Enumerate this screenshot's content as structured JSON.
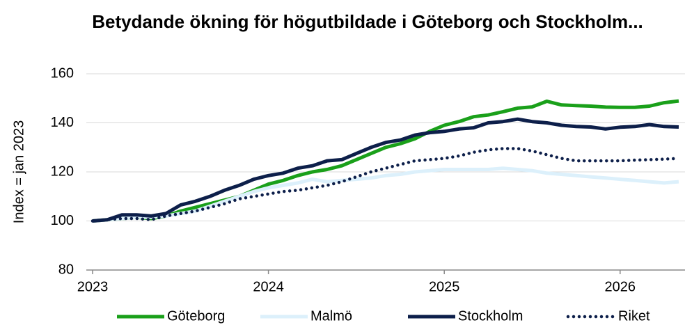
{
  "chart_data": {
    "type": "line",
    "title": "Betydande ökning för högutbildade i Göteborg och Stockholm...",
    "y_label": "Index = jan 2023",
    "categories": [
      "2023",
      null,
      null,
      null,
      null,
      null,
      null,
      null,
      null,
      null,
      null,
      null,
      "2024",
      null,
      null,
      null,
      null,
      null,
      null,
      null,
      null,
      null,
      null,
      null,
      "2025",
      null,
      null,
      null,
      null,
      null,
      null,
      null,
      null,
      null,
      null,
      null,
      "2026",
      null,
      null,
      null,
      null
    ],
    "series": [
      {
        "name": "Göteborg",
        "color": "#1aa01a",
        "style": "solid",
        "values": [
          100,
          100.5,
          101,
          101.5,
          101,
          102,
          104,
          105.5,
          107,
          108.5,
          110,
          112.5,
          115,
          116.5,
          118.5,
          120,
          121,
          122.5,
          125,
          127.5,
          130,
          131.5,
          133.5,
          136.5,
          139,
          140.5,
          142.5,
          143.2,
          144.5,
          146,
          146.5,
          148.8,
          147.3,
          147,
          146.8,
          146.4,
          146.3,
          146.3,
          146.8,
          148.2,
          148.9
        ]
      },
      {
        "name": "Malmö",
        "color": "#dcf0fb",
        "style": "solid",
        "values": [
          100,
          100.5,
          101,
          101.5,
          101.5,
          102,
          103,
          104,
          106,
          108,
          110,
          112,
          113.5,
          114.5,
          115.5,
          117,
          116,
          116.5,
          117,
          117.5,
          118.5,
          119,
          120,
          120.5,
          121,
          121,
          121,
          121,
          121.5,
          121,
          120.5,
          119.5,
          119,
          118.5,
          118,
          117.5,
          117,
          116.5,
          116,
          115.5,
          116
        ]
      },
      {
        "name": "Stockholm",
        "color": "#0d1f4a",
        "style": "solid",
        "values": [
          100,
          100.5,
          102.5,
          102.5,
          102,
          103,
          106.5,
          108,
          110,
          112.5,
          114.5,
          117,
          118.5,
          119.5,
          121.5,
          122.5,
          124.5,
          125,
          127.5,
          130,
          132,
          133,
          135,
          136,
          136.5,
          137.5,
          138,
          140,
          140.5,
          141.5,
          140.5,
          140,
          139,
          138.5,
          138.3,
          137.5,
          138.2,
          138.5,
          139.3,
          138.5,
          138.3
        ]
      },
      {
        "name": "Riket",
        "color": "#0d1f4a",
        "style": "dotted",
        "values": [
          100,
          100.5,
          101,
          101,
          100.5,
          102,
          103,
          104,
          105.5,
          107,
          109,
          110,
          111,
          112,
          112.5,
          113.5,
          114.5,
          116,
          118,
          120,
          121.5,
          123,
          124.5,
          125,
          125.5,
          126.5,
          128,
          129,
          129.5,
          129.5,
          128.5,
          127,
          125.5,
          124.5,
          124.5,
          124.5,
          124.5,
          124.8,
          125,
          125.2,
          125.5
        ]
      }
    ],
    "ylim": [
      80,
      160
    ],
    "yticks": [
      80,
      100,
      120,
      140,
      160
    ],
    "grid": true,
    "legend": "bottom"
  }
}
